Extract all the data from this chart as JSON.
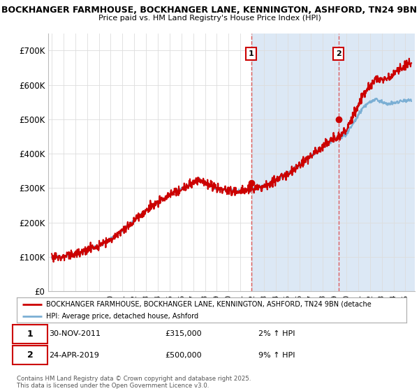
{
  "title_line1": "BOCKHANGER FARMHOUSE, BOCKHANGER LANE, KENNINGTON, ASHFORD, TN24 9BN",
  "title_line2": "Price paid vs. HM Land Registry's House Price Index (HPI)",
  "ylim": [
    0,
    750000
  ],
  "yticks": [
    0,
    100000,
    200000,
    300000,
    400000,
    500000,
    600000,
    700000
  ],
  "ytick_labels": [
    "£0",
    "£100K",
    "£200K",
    "£300K",
    "£400K",
    "£500K",
    "£600K",
    "£700K"
  ],
  "property_color": "#cc0000",
  "hpi_color": "#7bafd4",
  "marker1_year": 2011.92,
  "marker1_value": 315000,
  "marker2_year": 2019.32,
  "marker2_value": 500000,
  "legend_property": "BOCKHANGER FARMHOUSE, BOCKHANGER LANE, KENNINGTON, ASHFORD, TN24 9BN (detache",
  "legend_hpi": "HPI: Average price, detached house, Ashford",
  "copyright": "Contains HM Land Registry data © Crown copyright and database right 2025.\nThis data is licensed under the Open Government Licence v3.0.",
  "background_color": "#ffffff",
  "grid_color": "#dddddd",
  "shade_color": "#dce8f5",
  "vline_color": "#dd4444"
}
